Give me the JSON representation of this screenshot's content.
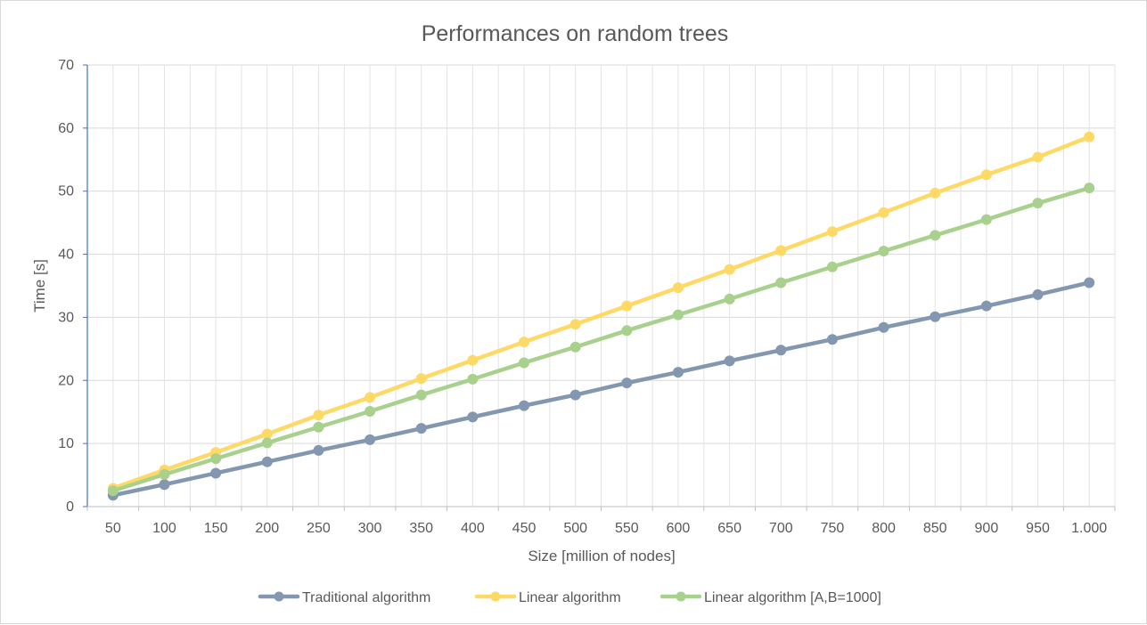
{
  "chart_data": {
    "type": "line",
    "title": "Performances on random trees",
    "xlabel": "Size [million of nodes]",
    "ylabel": "Time [s]",
    "ylim": [
      0,
      70
    ],
    "yticks": [
      "0",
      "10",
      "20",
      "30",
      "40",
      "50",
      "60",
      "70"
    ],
    "categories": [
      "50",
      "100",
      "150",
      "200",
      "250",
      "300",
      "350",
      "400",
      "450",
      "500",
      "550",
      "600",
      "650",
      "700",
      "750",
      "800",
      "850",
      "900",
      "950",
      "1.000"
    ],
    "grid": true,
    "legend_position": "bottom",
    "series": [
      {
        "name": "Traditional algorithm",
        "color": "#8497b0",
        "values": [
          1.8,
          3.5,
          5.3,
          7.1,
          8.9,
          10.6,
          12.4,
          14.2,
          16.0,
          17.7,
          19.6,
          21.3,
          23.1,
          24.8,
          26.5,
          28.4,
          30.1,
          31.8,
          33.6,
          35.5
        ]
      },
      {
        "name": "Linear algorithm",
        "color": "#ffd966",
        "values": [
          2.9,
          5.8,
          8.6,
          11.5,
          14.5,
          17.3,
          20.3,
          23.2,
          26.1,
          28.9,
          31.8,
          34.7,
          37.6,
          40.6,
          43.6,
          46.6,
          49.7,
          52.6,
          55.4,
          58.6
        ]
      },
      {
        "name": "Linear algorithm [A,B=1000]",
        "color": "#a9d18e",
        "values": [
          2.5,
          5.1,
          7.6,
          10.1,
          12.6,
          15.1,
          17.7,
          20.2,
          22.8,
          25.3,
          27.9,
          30.4,
          32.9,
          35.5,
          38.0,
          40.5,
          43.0,
          45.5,
          48.1,
          50.5
        ]
      }
    ]
  }
}
